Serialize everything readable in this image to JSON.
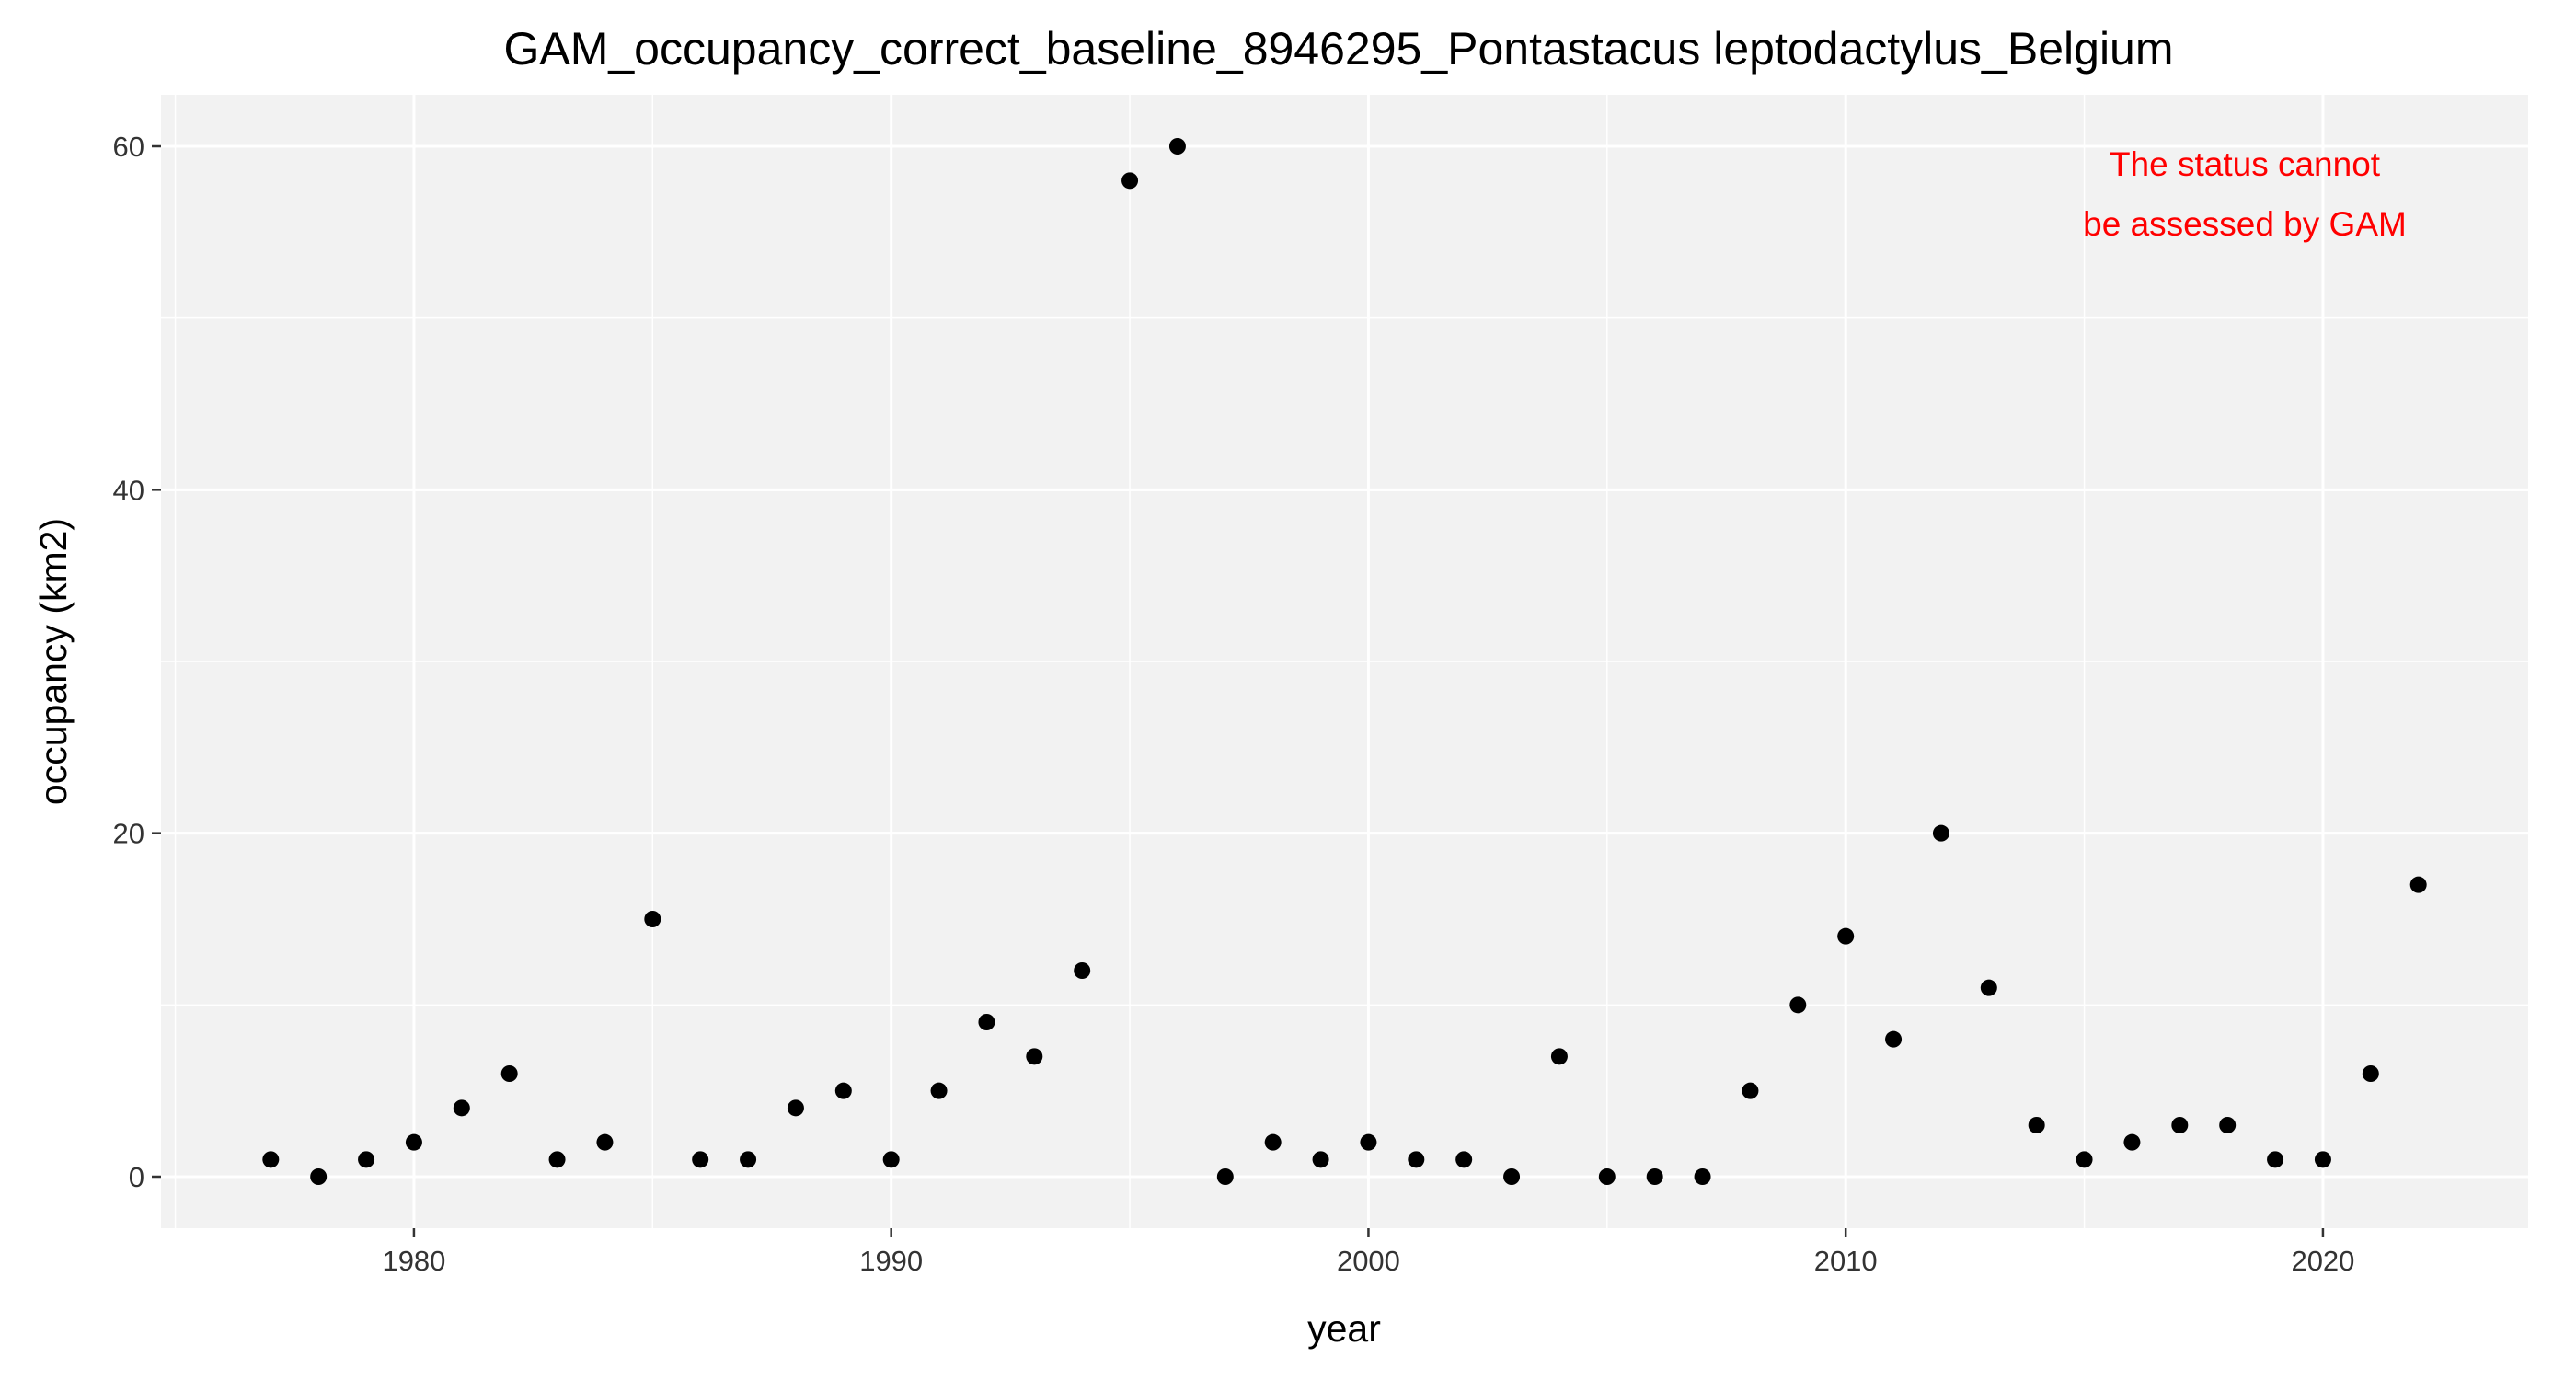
{
  "chart_data": {
    "type": "scatter",
    "title": "GAM_occupancy_correct_baseline_8946295_Pontastacus leptodactylus_Belgium",
    "xlabel": "year",
    "ylabel": "occupancy (km2)",
    "xlim": [
      1974.7,
      2024.3
    ],
    "ylim": [
      -3,
      63
    ],
    "xticks": [
      1980,
      1990,
      2000,
      2010,
      2020
    ],
    "yticks": [
      0,
      20,
      40,
      60
    ],
    "grid": true,
    "background": "#f2f2f2",
    "gridColor": "#ffffff",
    "pointColor": "#000000",
    "annotation": {
      "lines": [
        "The status cannot",
        "be assessed by GAM"
      ],
      "color": "#ff0000"
    },
    "points": [
      {
        "x": 1977,
        "y": 1
      },
      {
        "x": 1978,
        "y": 0
      },
      {
        "x": 1979,
        "y": 1
      },
      {
        "x": 1980,
        "y": 2
      },
      {
        "x": 1981,
        "y": 4
      },
      {
        "x": 1982,
        "y": 6
      },
      {
        "x": 1983,
        "y": 1
      },
      {
        "x": 1984,
        "y": 2
      },
      {
        "x": 1985,
        "y": 15
      },
      {
        "x": 1986,
        "y": 1
      },
      {
        "x": 1987,
        "y": 1
      },
      {
        "x": 1988,
        "y": 4
      },
      {
        "x": 1989,
        "y": 5
      },
      {
        "x": 1990,
        "y": 1
      },
      {
        "x": 1991,
        "y": 5
      },
      {
        "x": 1992,
        "y": 9
      },
      {
        "x": 1993,
        "y": 7
      },
      {
        "x": 1994,
        "y": 12
      },
      {
        "x": 1995,
        "y": 58
      },
      {
        "x": 1996,
        "y": 60
      },
      {
        "x": 1997,
        "y": 0
      },
      {
        "x": 1998,
        "y": 2
      },
      {
        "x": 1999,
        "y": 1
      },
      {
        "x": 2000,
        "y": 2
      },
      {
        "x": 2001,
        "y": 1
      },
      {
        "x": 2002,
        "y": 1
      },
      {
        "x": 2003,
        "y": 0
      },
      {
        "x": 2004,
        "y": 7
      },
      {
        "x": 2005,
        "y": 0
      },
      {
        "x": 2006,
        "y": 0
      },
      {
        "x": 2007,
        "y": 0
      },
      {
        "x": 2008,
        "y": 5
      },
      {
        "x": 2009,
        "y": 10
      },
      {
        "x": 2010,
        "y": 14
      },
      {
        "x": 2011,
        "y": 8
      },
      {
        "x": 2012,
        "y": 20
      },
      {
        "x": 2013,
        "y": 11
      },
      {
        "x": 2014,
        "y": 3
      },
      {
        "x": 2015,
        "y": 1
      },
      {
        "x": 2016,
        "y": 2
      },
      {
        "x": 2017,
        "y": 3
      },
      {
        "x": 2018,
        "y": 3
      },
      {
        "x": 2019,
        "y": 1
      },
      {
        "x": 2020,
        "y": 1
      },
      {
        "x": 2021,
        "y": 6
      },
      {
        "x": 2022,
        "y": 17
      }
    ]
  }
}
